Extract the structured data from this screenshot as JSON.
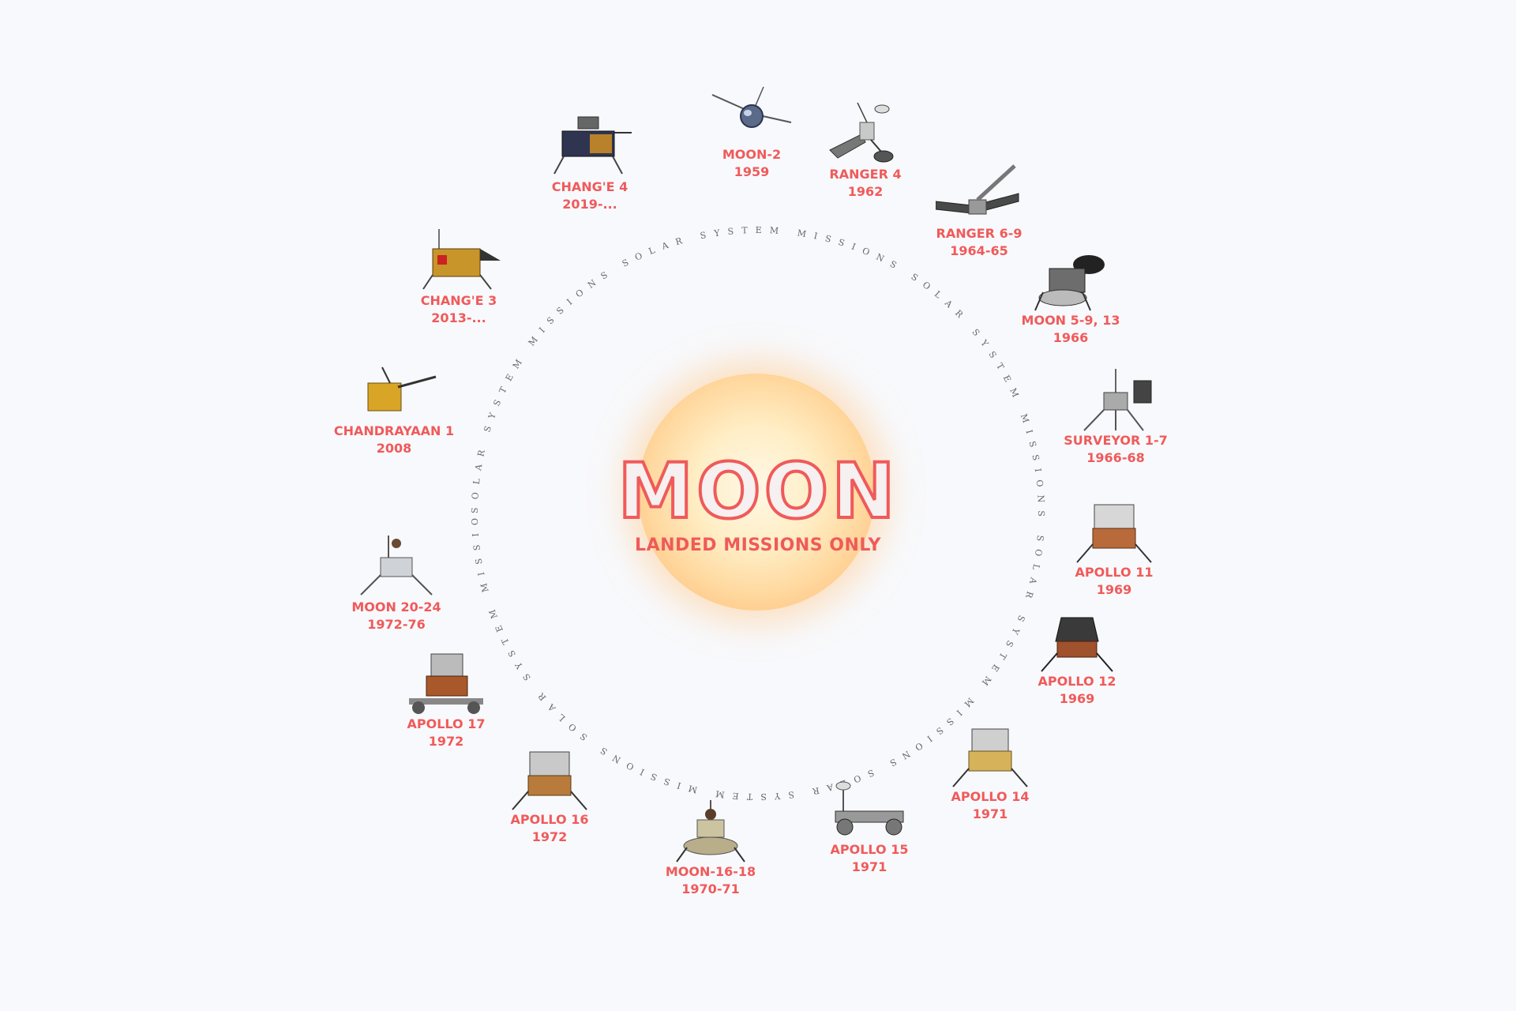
{
  "center": {
    "title": "MOON",
    "subtitle": "LANDED MISSIONS ONLY"
  },
  "ring_text": "SOLAR SYSTEM MISSIONS SOLAR SYSTEM MISSIONS SOLAR SYSTEM MISSIONS SOLAR SYSTEM MISSIONS SOLAR SYSTEM MISSIONS SOLAR SYSTEM MISSIONS",
  "colors": {
    "accent": "#f05a5a",
    "background": "#f8f9fc",
    "moon": "#ffe2b0"
  },
  "missions": [
    {
      "name": "MOON-2",
      "years": "1959",
      "icon": "probe-sphere-icon"
    },
    {
      "name": "RANGER 4",
      "years": "1962",
      "icon": "ranger-probe-icon"
    },
    {
      "name": "RANGER 6-9",
      "years": "1964-65",
      "icon": "ranger-probe-icon"
    },
    {
      "name": "MOON 5-9, 13",
      "years": "1966",
      "icon": "luna-lander-icon"
    },
    {
      "name": "SURVEYOR 1-7",
      "years": "1966-68",
      "icon": "surveyor-lander-icon"
    },
    {
      "name": "APOLLO 11",
      "years": "1969",
      "icon": "apollo-lander-icon"
    },
    {
      "name": "APOLLO 12",
      "years": "1969",
      "icon": "apollo-lander-icon"
    },
    {
      "name": "APOLLO 14",
      "years": "1971",
      "icon": "apollo-lander-icon"
    },
    {
      "name": "APOLLO 15",
      "years": "1971",
      "icon": "lunar-rover-icon"
    },
    {
      "name": "MOON-16-18",
      "years": "1970-71",
      "icon": "luna-lander-icon"
    },
    {
      "name": "APOLLO 16",
      "years": "1972",
      "icon": "apollo-lander-icon"
    },
    {
      "name": "APOLLO 17",
      "years": "1972",
      "icon": "apollo-lander-icon"
    },
    {
      "name": "MOON 20-24",
      "years": "1972-76",
      "icon": "luna-lander-icon"
    },
    {
      "name": "CHANDRAYAAN 1",
      "years": "2008",
      "icon": "orbiter-icon"
    },
    {
      "name": "CHANG'E 3",
      "years": "2013-...",
      "icon": "change-lander-icon"
    },
    {
      "name": "CHANG'E 4",
      "years": "2019-...",
      "icon": "change-lander-icon"
    }
  ]
}
